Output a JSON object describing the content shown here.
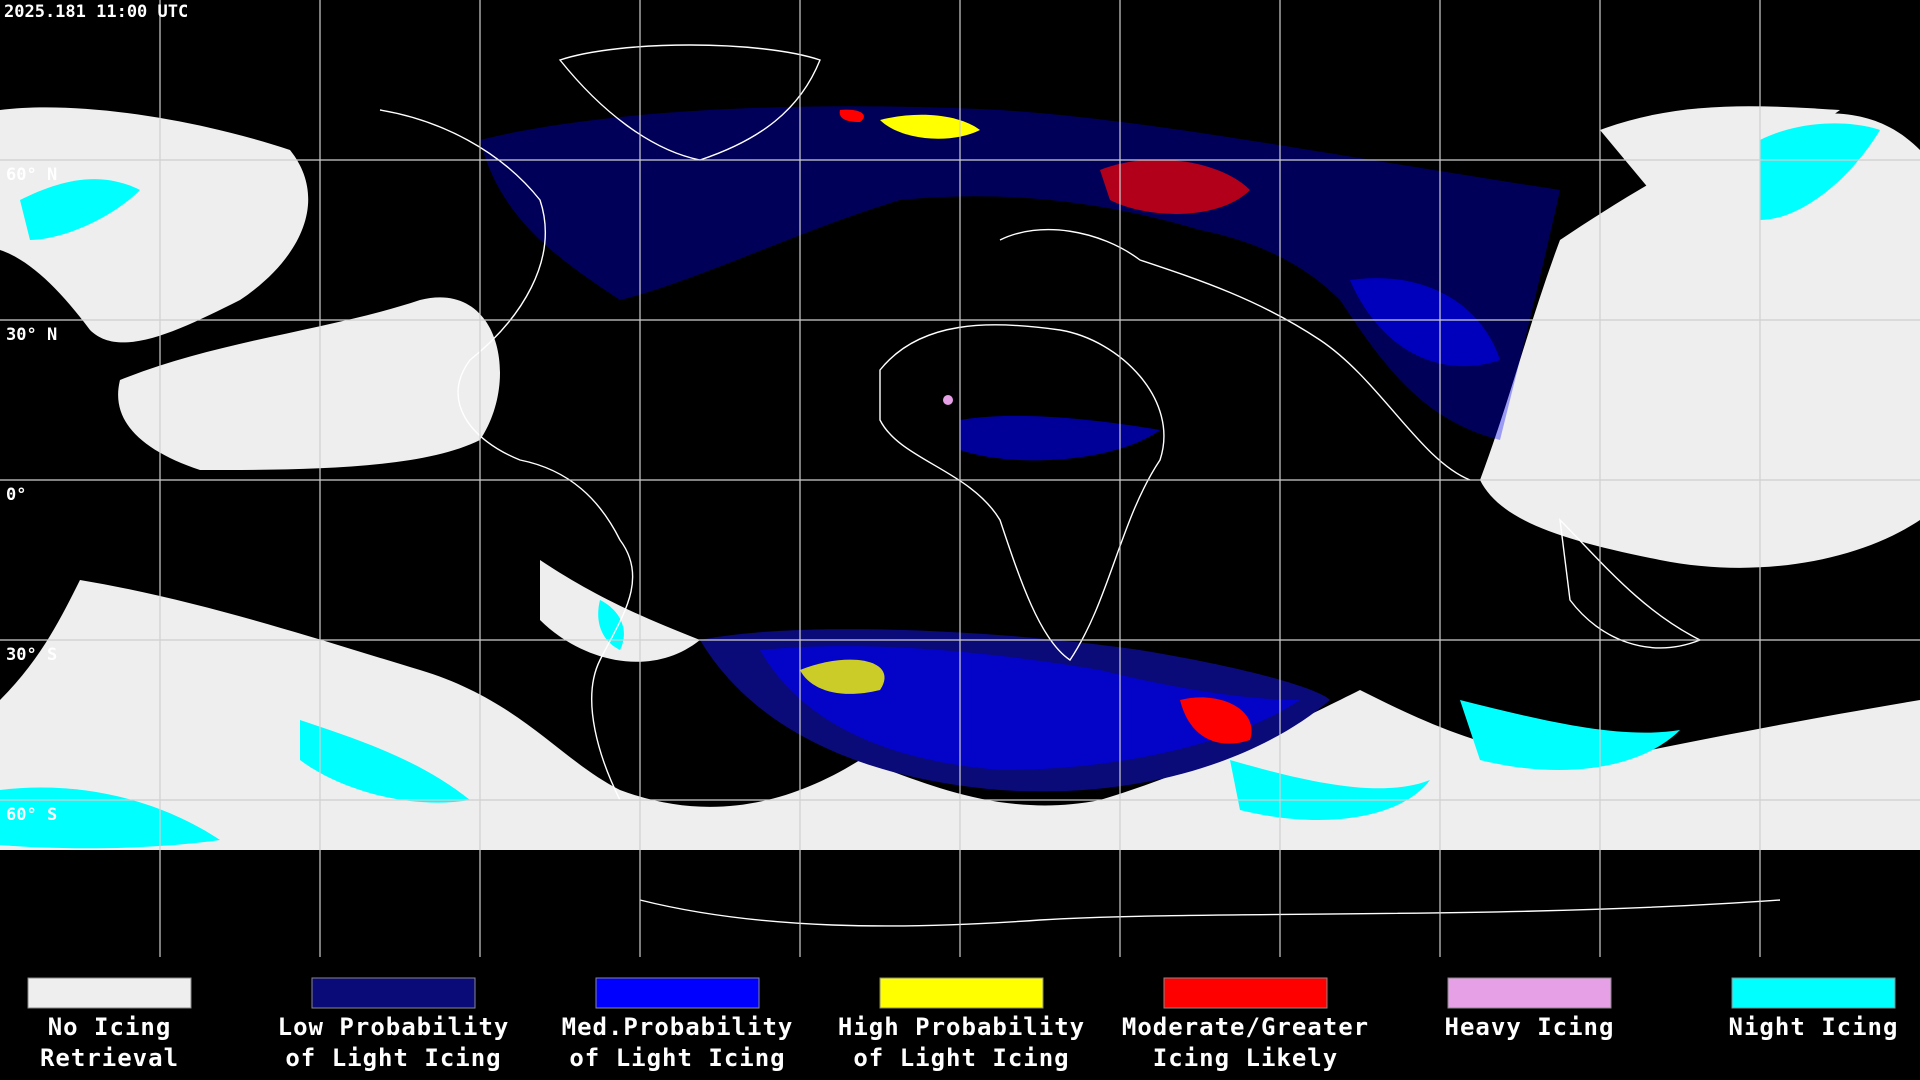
{
  "header": {
    "timestamp": "2025.181 11:00 UTC"
  },
  "map": {
    "latitude_labels": [
      "60° N",
      "30° N",
      "0°",
      "30° S",
      "60° S"
    ]
  },
  "legend": [
    {
      "label": [
        "No Icing",
        "Retrieval"
      ],
      "color": "#eeeeee"
    },
    {
      "label": [
        "Low Probability",
        "of Light Icing"
      ],
      "color": "#0a0a78"
    },
    {
      "label": [
        "Med.Probability",
        "of Light Icing"
      ],
      "color": "#0000ff"
    },
    {
      "label": [
        "High Probability",
        "of Light Icing"
      ],
      "color": "#ffff00"
    },
    {
      "label": [
        "Moderate/Greater",
        "Icing Likely"
      ],
      "color": "#ff0000"
    },
    {
      "label": [
        "Heavy Icing"
      ],
      "color": "#e6a0e6"
    },
    {
      "label": [
        "Night Icing"
      ],
      "color": "#00ffff"
    }
  ]
}
